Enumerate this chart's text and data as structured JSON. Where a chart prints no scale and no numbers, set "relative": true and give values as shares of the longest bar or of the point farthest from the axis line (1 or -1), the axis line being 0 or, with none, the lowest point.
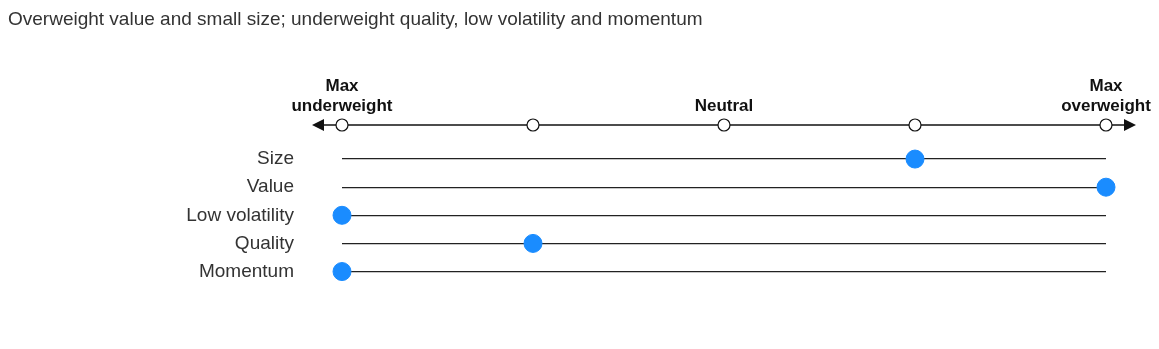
{
  "chart_data": {
    "type": "scatter",
    "title": "Overweight value and small size; underweight quality, low volatility and momentum",
    "orientation": "horizontal",
    "relative": true,
    "categories": [
      "Size",
      "Value",
      "Low volatility",
      "Quality",
      "Momentum"
    ],
    "values": [
      0.75,
      1,
      0,
      0.25,
      0
    ],
    "color": "#1a8cff",
    "annotations": [
      "Max underweight",
      "Neutral",
      "Max overweight"
    ],
    "grid": "y",
    "marker": "circle"
  }
}
